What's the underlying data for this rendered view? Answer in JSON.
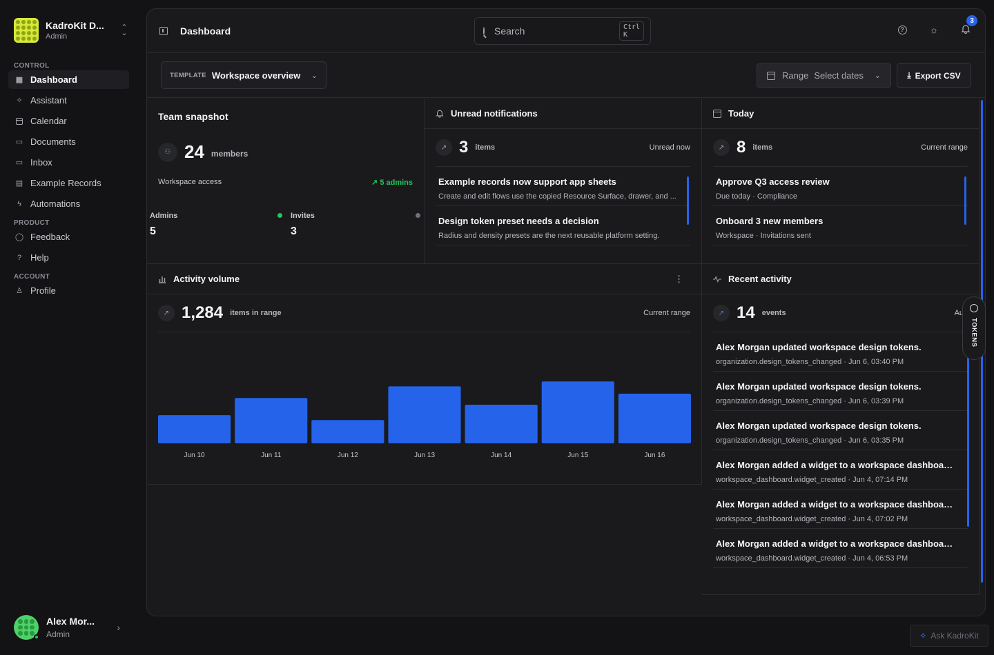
{
  "workspace": {
    "name": "KadroKit D...",
    "role": "Admin"
  },
  "nav": {
    "control_label": "CONTROL",
    "control": [
      {
        "label": "Dashboard",
        "icon": "grid-icon",
        "active": true
      },
      {
        "label": "Assistant",
        "icon": "sparkle-icon"
      },
      {
        "label": "Calendar",
        "icon": "calendar-icon"
      },
      {
        "label": "Documents",
        "icon": "folder-icon"
      },
      {
        "label": "Inbox",
        "icon": "inbox-icon"
      },
      {
        "label": "Example Records",
        "icon": "table-icon"
      },
      {
        "label": "Automations",
        "icon": "bolt-icon"
      }
    ],
    "product_label": "PRODUCT",
    "product": [
      {
        "label": "Feedback",
        "icon": "chat-icon"
      },
      {
        "label": "Help",
        "icon": "help-icon"
      }
    ],
    "account_label": "ACCOUNT",
    "account": [
      {
        "label": "Profile",
        "icon": "user-icon"
      }
    ]
  },
  "user": {
    "name": "Alex Mor...",
    "role": "Admin"
  },
  "header": {
    "title": "Dashboard",
    "search_placeholder": "Search",
    "search_shortcut": "Ctrl K",
    "notification_count": "3"
  },
  "toolbar": {
    "template_label": "TEMPLATE",
    "template_value": "Workspace overview",
    "range_label": "Range",
    "range_value": "Select dates",
    "export_label": "Export CSV"
  },
  "team": {
    "title": "Team snapshot",
    "count": "24",
    "count_label": "members",
    "access_label": "Workspace access",
    "admins_badge": "5 admins",
    "admins_label": "Admins",
    "admins_value": "5",
    "invites_label": "Invites",
    "invites_value": "3"
  },
  "notifications": {
    "title": "Unread notifications",
    "count": "3",
    "unit": "items",
    "right": "Unread now",
    "items": [
      {
        "title": "Example records now support app sheets",
        "sub": "Create and edit flows use the copied Resource Surface, drawer, and ..."
      },
      {
        "title": "Design token preset needs a decision",
        "sub": "Radius and density presets are the next reusable platform setting."
      }
    ]
  },
  "today": {
    "title": "Today",
    "count": "8",
    "unit": "items",
    "right": "Current range",
    "items": [
      {
        "title": "Approve Q3 access review",
        "sub": "Due today · Compliance"
      },
      {
        "title": "Onboard 3 new members",
        "sub": "Workspace · Invitations sent"
      }
    ]
  },
  "activity": {
    "title": "Activity volume",
    "count": "1,284",
    "unit": "items in range",
    "right": "Current range"
  },
  "chart_data": {
    "type": "bar",
    "categories": [
      "Jun 10",
      "Jun 11",
      "Jun 12",
      "Jun 13",
      "Jun 14",
      "Jun 15",
      "Jun 16"
    ],
    "values": [
      46,
      74,
      38,
      93,
      63,
      101,
      81
    ],
    "ylim": [
      0,
      180
    ],
    "color": "#2563eb",
    "grid": false,
    "legend": "none"
  },
  "recent": {
    "title": "Recent activity",
    "count": "14",
    "unit": "events",
    "right": "Audit fee",
    "items": [
      {
        "title": "Alex Morgan updated workspace design tokens.",
        "sub": "organization.design_tokens_changed · Jun 6, 03:40 PM"
      },
      {
        "title": "Alex Morgan updated workspace design tokens.",
        "sub": "organization.design_tokens_changed · Jun 6, 03:39 PM"
      },
      {
        "title": "Alex Morgan updated workspace design tokens.",
        "sub": "organization.design_tokens_changed · Jun 6, 03:35 PM"
      },
      {
        "title": "Alex Morgan added a widget to a workspace dashboard.",
        "sub": "workspace_dashboard.widget_created · Jun 4, 07:14 PM"
      },
      {
        "title": "Alex Morgan added a widget to a workspace dashboard.",
        "sub": "workspace_dashboard.widget_created · Jun 4, 07:02 PM"
      },
      {
        "title": "Alex Morgan added a widget to a workspace dashboard.",
        "sub": "workspace_dashboard.widget_created · Jun 4, 06:53 PM"
      }
    ]
  },
  "tokens_tab": "TOKENS",
  "ask": "Ask KadroKit"
}
